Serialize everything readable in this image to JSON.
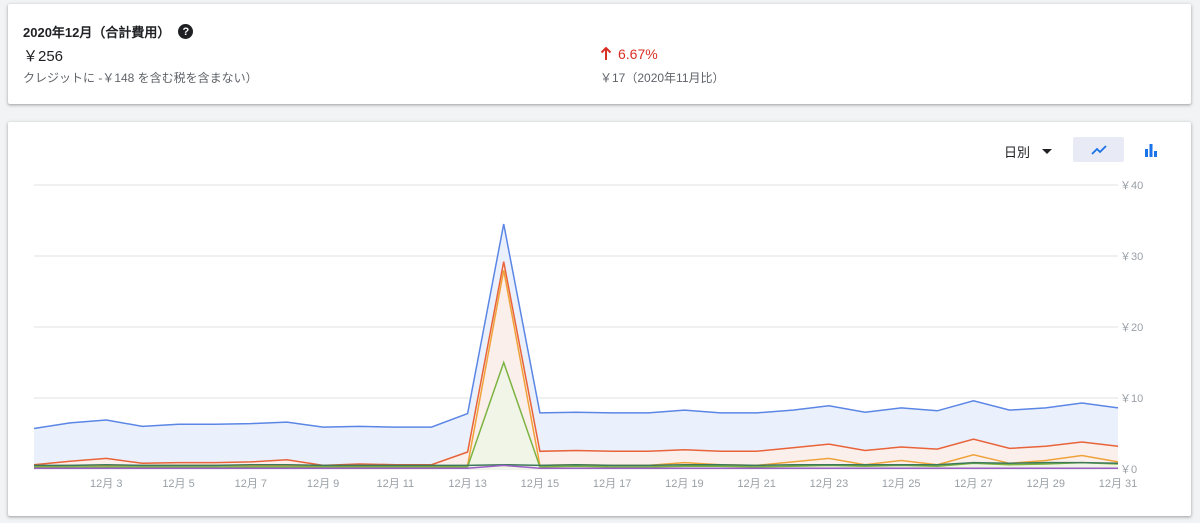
{
  "summary": {
    "title": "2020年12月（合計費用）",
    "help_icon": "help-icon",
    "total": "￥256",
    "credit_note": "クレジットに -￥148 を含む税を含まない）",
    "change_pct": "6.67%",
    "change_direction": "up",
    "change_color": "#d93025",
    "prev_compare": "￥17（2020年11月比）"
  },
  "controls": {
    "period_label": "日別",
    "line_icon": "line-chart-icon",
    "bar_icon": "bar-chart-icon"
  },
  "chart_data": {
    "type": "area",
    "x": [
      1,
      2,
      3,
      4,
      5,
      6,
      7,
      8,
      9,
      10,
      11,
      12,
      13,
      14,
      15,
      16,
      17,
      18,
      19,
      20,
      21,
      22,
      23,
      24,
      25,
      26,
      27,
      28,
      29,
      30,
      31
    ],
    "x_tick_labels": [
      "12月 3",
      "12月 5",
      "12月 7",
      "12月 9",
      "12月 11",
      "12月 13",
      "12月 15",
      "12月 17",
      "12月 19",
      "12月 21",
      "12月 23",
      "12月 25",
      "12月 27",
      "12月 29",
      "12月 31"
    ],
    "x_tick_values": [
      3,
      5,
      7,
      9,
      11,
      13,
      15,
      17,
      19,
      21,
      23,
      25,
      27,
      29,
      31
    ],
    "y_tick_labels": [
      "￥0",
      "￥10",
      "￥20",
      "￥30",
      "￥40"
    ],
    "y_tick_values": [
      0,
      10,
      20,
      30,
      40
    ],
    "ylim": [
      0,
      40
    ],
    "grid": true,
    "series": [
      {
        "color": "#5b86e5",
        "fill": "#e8eefc",
        "values": [
          5.7,
          6.5,
          6.9,
          6.0,
          6.3,
          6.3,
          6.4,
          6.6,
          5.9,
          6.0,
          5.9,
          5.9,
          7.8,
          34.5,
          7.9,
          8.0,
          7.9,
          7.9,
          8.3,
          7.9,
          7.9,
          8.3,
          8.9,
          8.0,
          8.6,
          8.2,
          9.6,
          8.3,
          8.6,
          9.3,
          8.6
        ]
      },
      {
        "color": "#e8633a",
        "fill": "#fdeee8",
        "values": [
          0.6,
          1.1,
          1.5,
          0.8,
          0.9,
          0.9,
          1.0,
          1.3,
          0.5,
          0.7,
          0.6,
          0.6,
          2.4,
          29.2,
          2.5,
          2.6,
          2.5,
          2.5,
          2.7,
          2.5,
          2.5,
          3.0,
          3.5,
          2.6,
          3.1,
          2.8,
          4.2,
          2.9,
          3.2,
          3.8,
          3.2
        ]
      },
      {
        "color": "#f0a23a",
        "fill": "none",
        "values": [
          0.4,
          0.5,
          0.5,
          0.5,
          0.5,
          0.5,
          0.5,
          0.5,
          0.4,
          0.4,
          0.4,
          0.4,
          0.5,
          28.0,
          0.5,
          0.6,
          0.5,
          0.5,
          0.9,
          0.6,
          0.5,
          1.0,
          1.5,
          0.6,
          1.2,
          0.6,
          2.0,
          0.8,
          1.2,
          1.9,
          1.0
        ]
      },
      {
        "color": "#7cb342",
        "fill": "#eef6e6",
        "values": [
          0.3,
          0.3,
          0.3,
          0.3,
          0.3,
          0.3,
          0.3,
          0.3,
          0.3,
          0.3,
          0.3,
          0.3,
          0.3,
          15.0,
          0.3,
          0.4,
          0.3,
          0.3,
          0.4,
          0.4,
          0.3,
          0.4,
          0.5,
          0.4,
          0.5,
          0.4,
          0.8,
          0.6,
          0.7,
          0.9,
          0.7
        ]
      },
      {
        "color": "#3d7a5c",
        "fill": "none",
        "values": [
          0.5,
          0.5,
          0.6,
          0.5,
          0.5,
          0.5,
          0.6,
          0.6,
          0.5,
          0.5,
          0.5,
          0.5,
          0.5,
          0.6,
          0.5,
          0.6,
          0.5,
          0.5,
          0.6,
          0.6,
          0.5,
          0.6,
          0.6,
          0.6,
          0.6,
          0.6,
          0.9,
          0.8,
          0.9,
          0.9,
          0.8
        ]
      },
      {
        "color": "#9c5fc6",
        "fill": "none",
        "values": [
          0.1,
          0.1,
          0.1,
          0.1,
          0.1,
          0.1,
          0.1,
          0.1,
          0.1,
          0.1,
          0.1,
          0.1,
          0.1,
          0.5,
          0.1,
          0.1,
          0.1,
          0.1,
          0.1,
          0.1,
          0.1,
          0.1,
          0.1,
          0.1,
          0.1,
          0.1,
          0.1,
          0.1,
          0.1,
          0.1,
          0.1
        ]
      }
    ]
  }
}
